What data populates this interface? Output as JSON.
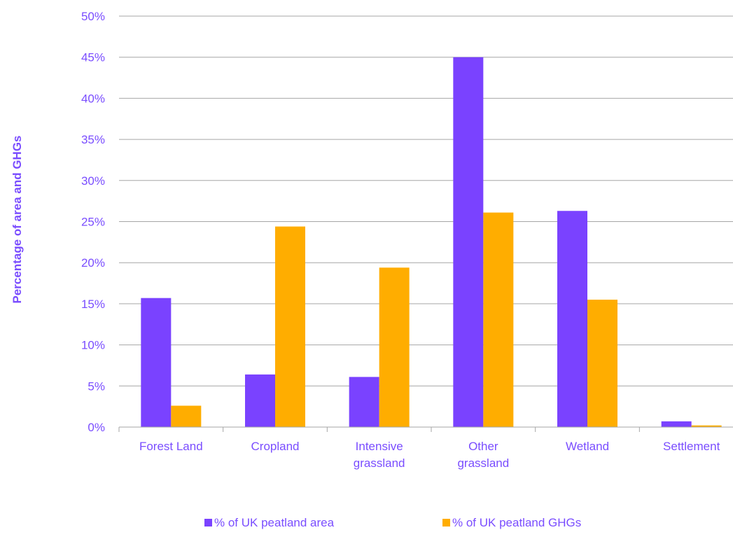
{
  "chart_data": {
    "type": "bar",
    "categories": [
      [
        "Forest Land"
      ],
      [
        "Cropland"
      ],
      [
        "Intensive",
        "grassland"
      ],
      [
        "Other",
        "grassland"
      ],
      [
        "Wetland"
      ],
      [
        "Settlement"
      ]
    ],
    "series": [
      {
        "name": "% of UK peatland area",
        "color": "#7a42ff",
        "values": [
          15.7,
          6.4,
          6.1,
          45.0,
          26.3,
          0.7
        ]
      },
      {
        "name": "% of UK peatland GHGs",
        "color": "#ffad00",
        "values": [
          2.6,
          24.4,
          19.4,
          26.1,
          15.5,
          0.2
        ]
      }
    ],
    "yticks": [
      "0%",
      "5%",
      "10%",
      "15%",
      "20%",
      "25%",
      "30%",
      "35%",
      "40%",
      "45%",
      "50%"
    ],
    "ylim": [
      0,
      50
    ],
    "ylabel": "Percentage of area and GHGs",
    "xlabel": "",
    "title": "",
    "grid": true,
    "legend_position": "bottom",
    "text_color": "#7a4dff"
  }
}
